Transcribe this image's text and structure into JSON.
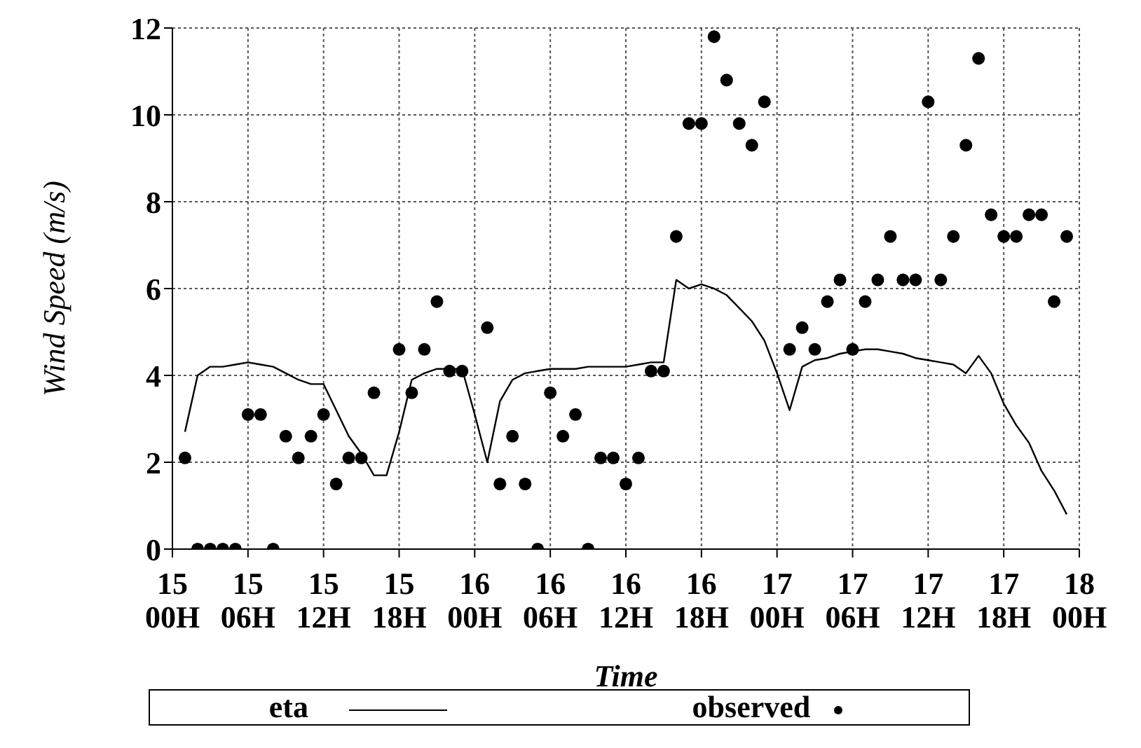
{
  "chart_data": {
    "type": "line",
    "xlabel": "Time",
    "ylabel": "Wind Speed (m/s)",
    "categories": [
      "15\n00H",
      null,
      null,
      null,
      null,
      null,
      "15\n06H",
      null,
      null,
      null,
      null,
      null,
      "15\n12H",
      null,
      null,
      null,
      null,
      null,
      "15\n18H",
      null,
      null,
      null,
      null,
      null,
      "16\n00H",
      null,
      null,
      null,
      null,
      null,
      "16\n06H",
      null,
      null,
      null,
      null,
      null,
      "16\n12H",
      null,
      null,
      null,
      null,
      null,
      "16\n18H",
      null,
      null,
      null,
      null,
      null,
      "17\n00H",
      null,
      null,
      null,
      null,
      null,
      "17\n06H",
      null,
      null,
      null,
      null,
      null,
      "17\n12H",
      null,
      null,
      null,
      null,
      null,
      "17\n18H",
      null,
      null,
      null,
      null,
      null,
      "18\n00H"
    ],
    "ylim": [
      0,
      12
    ],
    "yticks": [
      0,
      2,
      4,
      6,
      8,
      10,
      12
    ],
    "grid": true,
    "legend": "bottom",
    "series": [
      {
        "name": "eta",
        "color": "#000000",
        "marker": "none",
        "line_style": "solid",
        "values": [
          null,
          2.7,
          4.0,
          4.2,
          4.2,
          4.25,
          4.3,
          4.25,
          4.2,
          4.05,
          3.9,
          3.8,
          3.8,
          3.2,
          2.6,
          2.2,
          1.7,
          1.7,
          2.7,
          3.9,
          4.05,
          4.15,
          4.15,
          4.15,
          3.1,
          2.0,
          3.4,
          3.9,
          4.05,
          4.1,
          4.15,
          4.15,
          4.15,
          4.2,
          4.2,
          4.2,
          4.2,
          4.25,
          4.3,
          4.3,
          6.2,
          6.0,
          6.1,
          6.0,
          5.85,
          5.55,
          5.25,
          4.8,
          4.05,
          3.2,
          4.2,
          4.35,
          4.4,
          4.5,
          4.55,
          4.6,
          4.6,
          4.55,
          4.5,
          4.4,
          4.35,
          4.3,
          4.25,
          4.05,
          4.45,
          4.05,
          3.35,
          2.85,
          2.45,
          1.8,
          1.35,
          0.8,
          null
        ]
      },
      {
        "name": "observed",
        "type": "scatter",
        "color": "#000000",
        "marker": "circle",
        "values": [
          null,
          2.1,
          0,
          0,
          0,
          0,
          3.1,
          3.1,
          0,
          2.6,
          2.1,
          2.6,
          3.1,
          1.5,
          2.1,
          2.1,
          3.6,
          null,
          4.6,
          3.6,
          4.6,
          5.7,
          4.1,
          4.1,
          null,
          5.1,
          1.5,
          2.6,
          1.5,
          0,
          3.6,
          2.6,
          3.1,
          0,
          2.1,
          2.1,
          1.5,
          2.1,
          4.1,
          4.1,
          7.2,
          9.8,
          9.8,
          11.8,
          10.8,
          9.8,
          9.3,
          10.3,
          null,
          4.6,
          5.1,
          4.6,
          5.7,
          6.2,
          4.6,
          5.7,
          6.2,
          7.2,
          6.2,
          6.2,
          10.3,
          6.2,
          7.2,
          9.3,
          11.3,
          7.7,
          7.2,
          7.2,
          7.7,
          7.7,
          5.7,
          7.2,
          null
        ]
      }
    ]
  }
}
